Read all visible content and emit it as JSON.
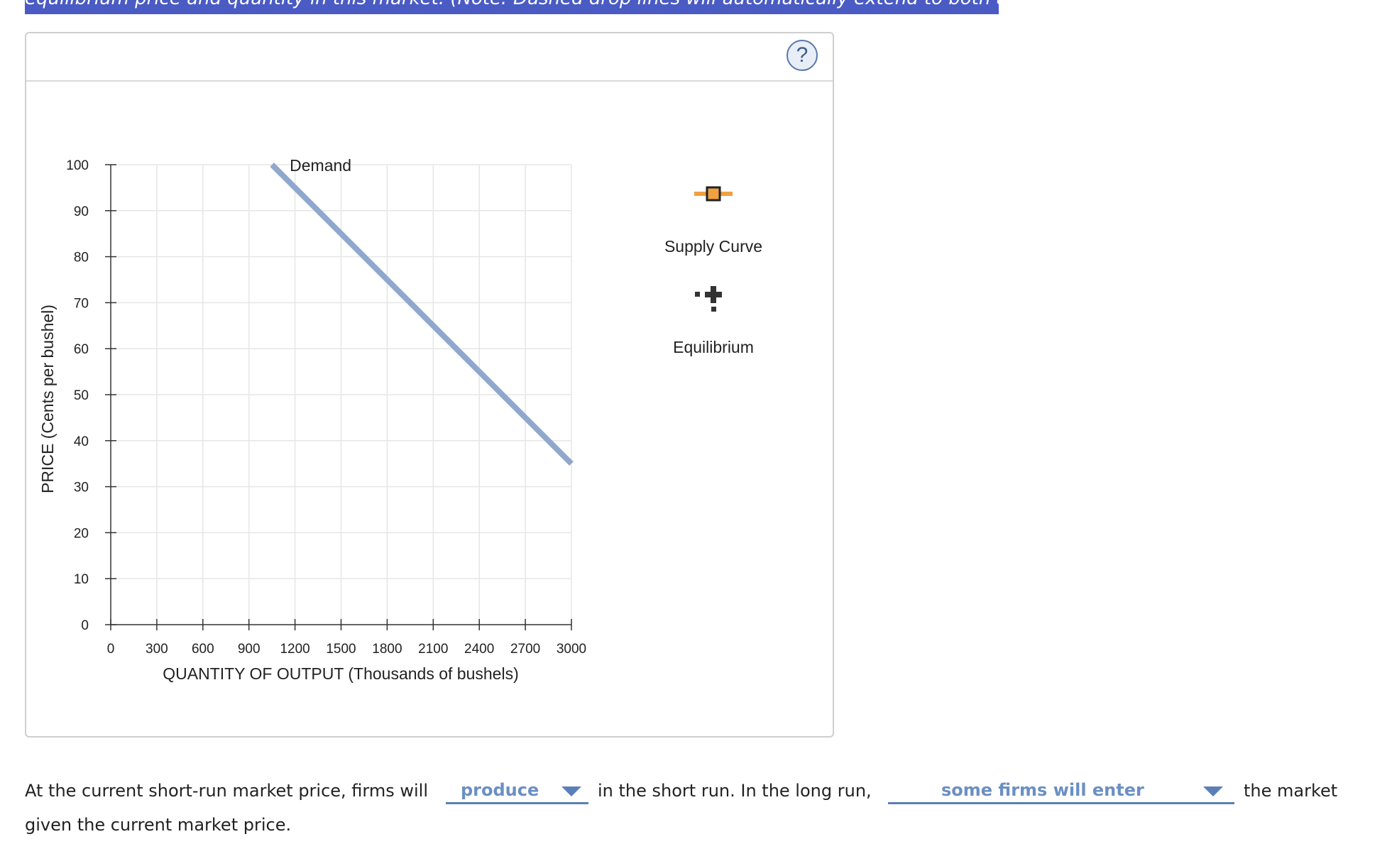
{
  "instruction": {
    "text": "equilibrium price and quantity in this market. (Note: Dashed drop lines will automatically extend to both axes.)"
  },
  "help_button": {
    "label": "?"
  },
  "chart_data": {
    "type": "line",
    "xlabel": "QUANTITY OF OUTPUT (Thousands of bushels)",
    "ylabel": "PRICE (Cents per bushel)",
    "xlim": [
      0,
      3000
    ],
    "ylim": [
      0,
      100
    ],
    "x_ticks": [
      0,
      300,
      600,
      900,
      1200,
      1500,
      1800,
      2100,
      2400,
      2700,
      3000
    ],
    "y_ticks": [
      0,
      10,
      20,
      30,
      40,
      50,
      60,
      70,
      80,
      90,
      100
    ],
    "grid": true,
    "series": [
      {
        "name": "Demand",
        "color": "#8fa8cc",
        "points": [
          [
            1050,
            100
          ],
          [
            3000,
            35
          ]
        ]
      }
    ]
  },
  "palette": {
    "supply": {
      "label": "Supply Curve",
      "icon": "supply-curve-icon",
      "color": "#f0a040"
    },
    "equilibrium": {
      "label": "Equilibrium",
      "icon": "equilibrium-icon",
      "color": "#333333"
    }
  },
  "question": {
    "part1": "At the current short-run market price, firms will",
    "dropdown1": "produce",
    "part2": "in the short run. In the long run,",
    "dropdown2": "some firms will enter",
    "part3": "the market",
    "part4": "given the current market price."
  }
}
